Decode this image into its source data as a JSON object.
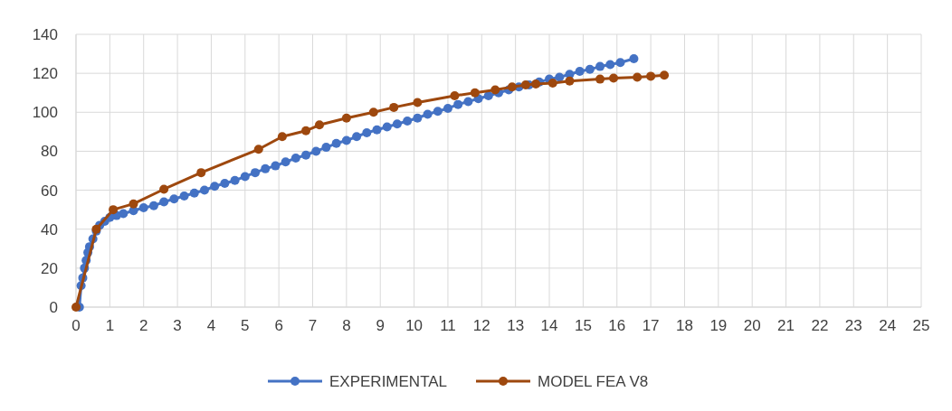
{
  "chart_data": {
    "type": "line",
    "xlim": [
      0,
      25
    ],
    "xticks": [
      0,
      1,
      2,
      3,
      4,
      5,
      6,
      7,
      8,
      9,
      10,
      11,
      12,
      13,
      14,
      15,
      16,
      17,
      18,
      19,
      20,
      21,
      22,
      23,
      24,
      25
    ],
    "ylim": [
      0,
      140
    ],
    "yticks": [
      0,
      20,
      40,
      60,
      80,
      100,
      120,
      140
    ],
    "grid": true,
    "legend": "bottom",
    "marker": "circle",
    "line_style": "solid",
    "series": [
      {
        "name": "EXPERIMENTAL",
        "color": "#4472c4",
        "x": [
          0.1,
          0.15,
          0.2,
          0.25,
          0.3,
          0.35,
          0.4,
          0.5,
          0.6,
          0.7,
          0.85,
          1,
          1.2,
          1.4,
          1.7,
          2,
          2.3,
          2.6,
          2.9,
          3.2,
          3.5,
          3.8,
          4.1,
          4.4,
          4.7,
          5,
          5.3,
          5.6,
          5.9,
          6.2,
          6.5,
          6.8,
          7.1,
          7.4,
          7.7,
          8,
          8.3,
          8.6,
          8.9,
          9.2,
          9.5,
          9.8,
          10.1,
          10.4,
          10.7,
          11,
          11.3,
          11.6,
          11.9,
          12.2,
          12.5,
          12.8,
          13.1,
          13.4,
          13.7,
          14,
          14.3,
          14.6,
          14.9,
          15.2,
          15.5,
          15.8,
          16.1,
          16.5
        ],
        "values": [
          0,
          11,
          15,
          20,
          24,
          28,
          31,
          35,
          39,
          42,
          44,
          46,
          47,
          48,
          49.5,
          51,
          52,
          54,
          55.5,
          57,
          58.5,
          60,
          62,
          63.5,
          65,
          67,
          69,
          71,
          72.5,
          74.5,
          76.5,
          78,
          80,
          82,
          84,
          85.5,
          87.5,
          89.5,
          91,
          92.5,
          94,
          95.5,
          97,
          99,
          100.5,
          102,
          104,
          105.5,
          107,
          108.5,
          110,
          111.5,
          113,
          114,
          115.5,
          117,
          118,
          119.5,
          121,
          122,
          123.5,
          124.5,
          125.5,
          127.5
        ]
      },
      {
        "name": "MODEL FEA V8",
        "color": "#9e480e",
        "x": [
          0,
          0.6,
          1.1,
          1.7,
          2.6,
          3.7,
          5.4,
          6.1,
          6.8,
          7.2,
          8,
          8.8,
          9.4,
          10.1,
          11.2,
          11.8,
          12.4,
          12.9,
          13.3,
          13.6,
          14.1,
          14.6,
          15.5,
          15.9,
          16.6,
          17,
          17.4
        ],
        "values": [
          0,
          40,
          50,
          53,
          60.5,
          69,
          81,
          87.5,
          90.5,
          93.5,
          97,
          100,
          102.5,
          105,
          108.5,
          110,
          111.5,
          113,
          114,
          114.5,
          115,
          116,
          117,
          117.5,
          118,
          118.5,
          119
        ]
      }
    ]
  }
}
